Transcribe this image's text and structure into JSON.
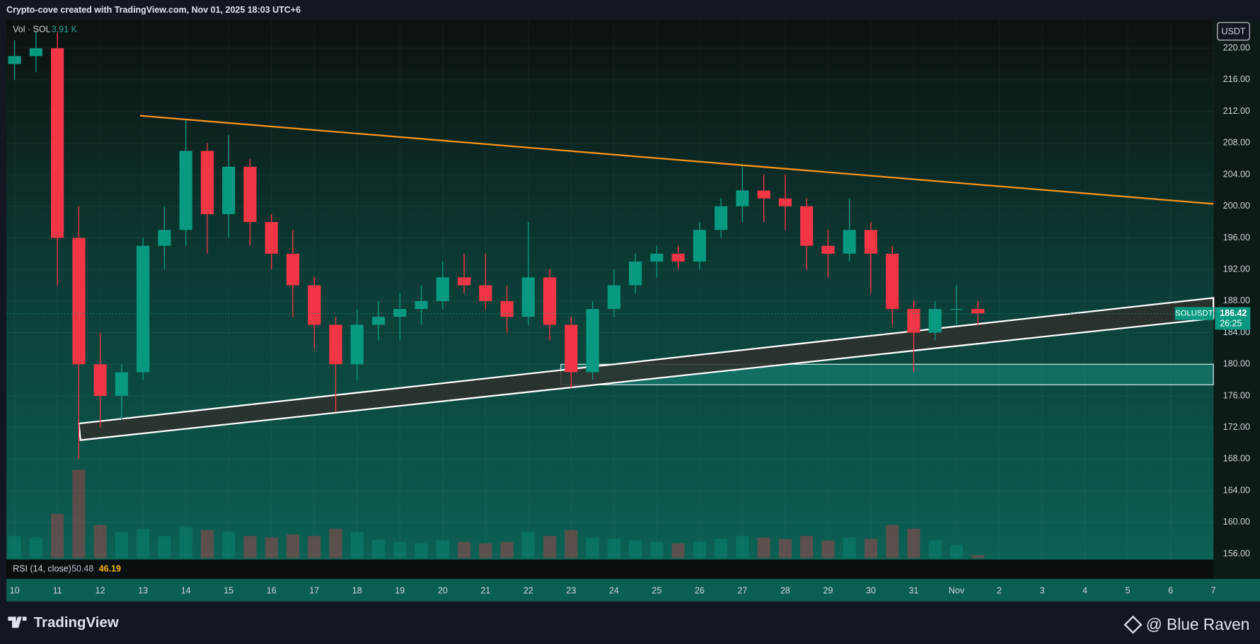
{
  "header": "Crypto-cove created with TradingView.com, Nov 01, 2025 18:03 UTC+6",
  "footer": {
    "brand": "TradingView",
    "credit": "@ Blue Raven"
  },
  "chart_data": {
    "type": "candlestick",
    "symbol": "SOLUSDT",
    "currency": "USDT",
    "countdown": "26:25",
    "up_color": "#089981",
    "down_color": "#f23645",
    "xlim": [
      -0.19,
      28
    ],
    "ylim": [
      155.27,
      223.56
    ],
    "xticks": [
      {
        "value": 0,
        "label": "10"
      },
      {
        "value": 1,
        "label": "11"
      },
      {
        "value": 2,
        "label": "12"
      },
      {
        "value": 3,
        "label": "13"
      },
      {
        "value": 4,
        "label": "14"
      },
      {
        "value": 5,
        "label": "15"
      },
      {
        "value": 6,
        "label": "16"
      },
      {
        "value": 7,
        "label": "17"
      },
      {
        "value": 8,
        "label": "18"
      },
      {
        "value": 9,
        "label": "19"
      },
      {
        "value": 10,
        "label": "20"
      },
      {
        "value": 11,
        "label": "21"
      },
      {
        "value": 12,
        "label": "22"
      },
      {
        "value": 13,
        "label": "23"
      },
      {
        "value": 14,
        "label": "24"
      },
      {
        "value": 15,
        "label": "25"
      },
      {
        "value": 16,
        "label": "26"
      },
      {
        "value": 17,
        "label": "27"
      },
      {
        "value": 18,
        "label": "28"
      },
      {
        "value": 19,
        "label": "29"
      },
      {
        "value": 20,
        "label": "30"
      },
      {
        "value": 21,
        "label": "31"
      },
      {
        "value": 22,
        "label": "Nov"
      },
      {
        "value": 23,
        "label": "2"
      },
      {
        "value": 24,
        "label": "3"
      },
      {
        "value": 25,
        "label": "4"
      },
      {
        "value": 26,
        "label": "5"
      },
      {
        "value": 27,
        "label": "6"
      },
      {
        "value": 28,
        "label": "7"
      }
    ],
    "yticks": [
      {
        "value": 156,
        "label": "156.00"
      },
      {
        "value": 160,
        "label": "160.00"
      },
      {
        "value": 164,
        "label": "164.00"
      },
      {
        "value": 168,
        "label": "168.00"
      },
      {
        "value": 172,
        "label": "172.00"
      },
      {
        "value": 176,
        "label": "176.00"
      },
      {
        "value": 180,
        "label": "180.00"
      },
      {
        "value": 184,
        "label": "184.00"
      },
      {
        "value": 188,
        "label": "188.00"
      },
      {
        "value": 192,
        "label": "192.00"
      },
      {
        "value": 196,
        "label": "196.00"
      },
      {
        "value": 200,
        "label": "200.00"
      },
      {
        "value": 204,
        "label": "204.00"
      },
      {
        "value": 208,
        "label": "208.00"
      },
      {
        "value": 212,
        "label": "212.00"
      },
      {
        "value": 216,
        "label": "216.00"
      },
      {
        "value": 220,
        "label": "220.00"
      }
    ],
    "candles": {
      "x": [
        0,
        0.5,
        1,
        1.5,
        2,
        2.5,
        3,
        3.5,
        4,
        4.5,
        5,
        5.5,
        6,
        6.5,
        7,
        7.5,
        8,
        8.5,
        9,
        9.5,
        10,
        10.5,
        11,
        11.5,
        12,
        12.5,
        13,
        13.5,
        14,
        14.5,
        15,
        15.5,
        16,
        16.5,
        17,
        17.5,
        18,
        18.5,
        19,
        19.5,
        20,
        20.5,
        21,
        21.5,
        22,
        22.5
      ],
      "open": [
        218,
        219,
        220,
        196,
        180,
        176,
        179,
        195,
        197,
        207,
        199,
        205,
        198,
        194,
        190,
        185,
        180,
        185,
        186,
        187,
        188,
        191,
        190,
        188,
        186,
        191,
        185,
        179,
        187,
        190,
        193,
        194,
        193,
        197,
        200,
        202,
        201,
        200,
        195,
        194,
        197,
        194,
        187,
        184,
        187,
        187
      ],
      "high": [
        221,
        222,
        222,
        200,
        184,
        180,
        196,
        200,
        211,
        208,
        209,
        206,
        199,
        197,
        191,
        186,
        187,
        188,
        189,
        190,
        193,
        194,
        194,
        190,
        198,
        192,
        186,
        188,
        192,
        194,
        195,
        195,
        198,
        201,
        205,
        204,
        204,
        201,
        197,
        201,
        198,
        195,
        188,
        188,
        190,
        188
      ],
      "low": [
        216,
        217,
        190,
        168,
        172,
        173,
        178,
        192,
        195,
        194,
        196,
        195,
        192,
        186,
        182,
        174,
        178,
        183,
        183,
        185,
        187,
        189,
        187,
        184,
        185,
        183,
        177,
        178,
        186,
        189,
        191,
        192,
        192,
        196,
        198,
        198,
        197,
        192,
        191,
        193,
        189,
        185,
        179,
        183,
        185,
        185
      ],
      "close": [
        219,
        220,
        196,
        180,
        176,
        179,
        195,
        197,
        207,
        199,
        205,
        198,
        194,
        190,
        185,
        180,
        185,
        186,
        187,
        188,
        191,
        190,
        188,
        186,
        191,
        185,
        179,
        187,
        190,
        193,
        194,
        193,
        197,
        200,
        202,
        201,
        200,
        195,
        194,
        197,
        194,
        187,
        184,
        187,
        187,
        186.42
      ]
    },
    "volume": {
      "name": "Vol · SOL",
      "last_label": "3.91 K",
      "values": [
        30,
        28,
        60,
        120,
        45,
        35,
        40,
        30,
        42,
        38,
        36,
        30,
        28,
        32,
        30,
        40,
        35,
        25,
        22,
        20,
        24,
        22,
        20,
        22,
        35,
        30,
        38,
        28,
        26,
        24,
        22,
        20,
        22,
        26,
        30,
        28,
        26,
        30,
        24,
        28,
        26,
        45,
        40,
        24,
        18,
        3.91
      ]
    },
    "rsi": {
      "name": "RSI (14, close)",
      "labels": [
        "50.48",
        "46.19"
      ]
    },
    "trendline": {
      "color": "#f7931a",
      "x": [
        2.93,
        28
      ],
      "y": [
        211.46,
        200.3
      ]
    },
    "channel": {
      "upper": {
        "x": [
          1.5,
          28
        ],
        "y": [
          172.5,
          188.4
        ]
      },
      "lower": {
        "x": [
          1.54,
          28
        ],
        "y": [
          170.4,
          185.8
        ]
      }
    },
    "zone": {
      "x": [
        12.76,
        28
      ],
      "y": [
        177.4,
        180
      ]
    }
  }
}
